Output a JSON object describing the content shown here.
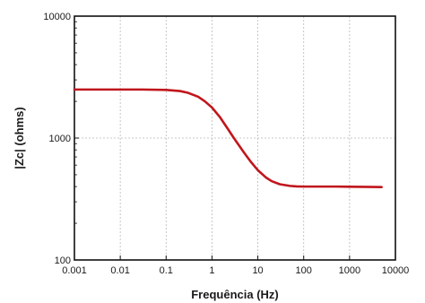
{
  "chart_data": {
    "type": "line",
    "xlabel": "Frequência (Hz)",
    "ylabel": "|Zc| (ohms)",
    "xscale": "log",
    "yscale": "log",
    "xlim": [
      0.001,
      10000
    ],
    "ylim": [
      100,
      10000
    ],
    "grid": "dashed",
    "xticks": [
      "0.001",
      "0.01",
      "0.1",
      "1",
      "10",
      "100",
      "1000",
      "10000"
    ],
    "yticks": [
      "100",
      "1000",
      "10000"
    ],
    "series": [
      {
        "color": "#c0161c",
        "x": [
          0.001,
          0.003,
          0.01,
          0.03,
          0.1,
          0.2,
          0.3,
          0.5,
          0.7,
          1,
          1.5,
          2,
          3,
          5,
          7,
          10,
          15,
          20,
          30,
          50,
          70,
          100,
          200,
          500,
          1000,
          2000,
          5000
        ],
        "y": [
          2500,
          2500,
          2500,
          2500,
          2480,
          2430,
          2350,
          2180,
          2000,
          1780,
          1480,
          1260,
          1000,
          760,
          640,
          545,
          475,
          443,
          418,
          405,
          401,
          400,
          400,
          400,
          399,
          398,
          396
        ]
      }
    ]
  }
}
